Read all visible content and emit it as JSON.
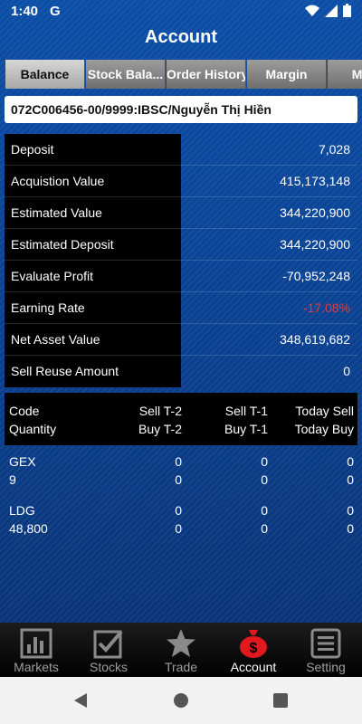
{
  "status": {
    "time": "1:40",
    "g": "G"
  },
  "title": "Account",
  "tabs": [
    "Balance",
    "Stock Bala...",
    "Order History",
    "Margin",
    "Marg"
  ],
  "account_id": "072C006456-00/9999:IBSC/Nguyễn Thị Hiền",
  "summary": [
    {
      "label": "Deposit",
      "value": "7,028"
    },
    {
      "label": "Acquistion Value",
      "value": "415,173,148"
    },
    {
      "label": "Estimated Value",
      "value": "344,220,900"
    },
    {
      "label": "Estimated Deposit",
      "value": "344,220,900"
    },
    {
      "label": "Evaluate Profit",
      "value": "-70,952,248"
    },
    {
      "label": "Earning Rate",
      "value": "-17.08%"
    },
    {
      "label": "Net Asset Value",
      "value": "348,619,682"
    },
    {
      "label": "Sell Reuse Amount",
      "value": "0"
    }
  ],
  "holdings_header": {
    "code": "Code",
    "quantity": "Quantity",
    "sell_t2": "Sell T-2",
    "buy_t2": "Buy T-2",
    "sell_t1": "Sell T-1",
    "buy_t1": "Buy T-1",
    "today_sell": "Today Sell",
    "today_buy": "Today Buy"
  },
  "holdings": [
    {
      "code": "GEX",
      "quantity": "9",
      "sell_t2": "0",
      "buy_t2": "0",
      "sell_t1": "0",
      "buy_t1": "0",
      "today_sell": "0",
      "today_buy": "0"
    },
    {
      "code": "LDG",
      "quantity": "48,800",
      "sell_t2": "0",
      "buy_t2": "0",
      "sell_t1": "0",
      "buy_t1": "0",
      "today_sell": "0",
      "today_buy": "0"
    }
  ],
  "nav": [
    {
      "label": "Markets",
      "icon": "bar-chart-icon"
    },
    {
      "label": "Stocks",
      "icon": "checkbox-icon"
    },
    {
      "label": "Trade",
      "icon": "star-icon"
    },
    {
      "label": "Account",
      "icon": "money-bag-icon"
    },
    {
      "label": "Setting",
      "icon": "list-icon"
    }
  ],
  "colors": {
    "negative": "#e43a3a",
    "accent_red": "#e0191e"
  }
}
